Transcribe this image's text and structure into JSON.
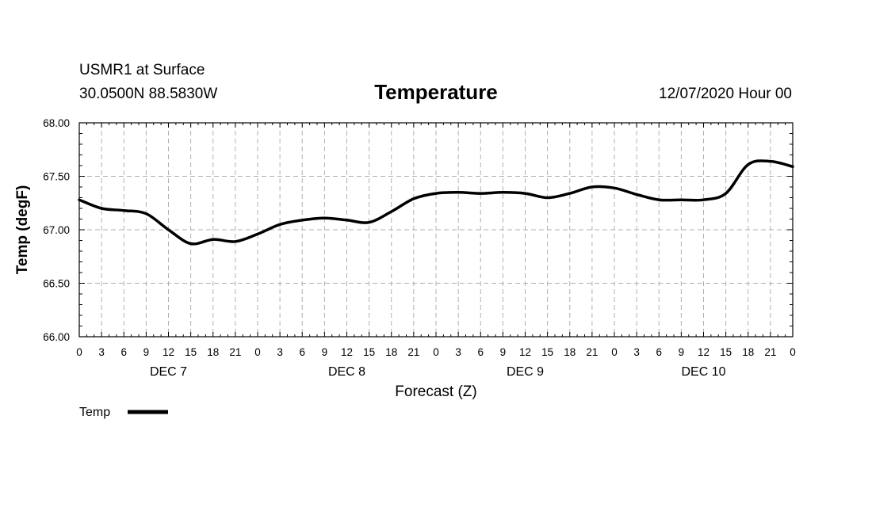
{
  "chart_data": {
    "type": "line",
    "station_label": "USMR1 at Surface",
    "location_label": "30.0500N 88.5830W",
    "title": "Temperature",
    "run_label": "12/07/2020 Hour 00",
    "xlabel": "Forecast (Z)",
    "ylabel": "Temp (degF)",
    "ylim": [
      66.0,
      68.0
    ],
    "xlim": [
      0,
      96
    ],
    "yticks": [
      "66.00",
      "66.50",
      "67.00",
      "67.50",
      "68.00"
    ],
    "ytick_values": [
      66.0,
      66.5,
      67.0,
      67.5,
      68.0
    ],
    "xtick_labels": [
      "0",
      "3",
      "6",
      "9",
      "12",
      "15",
      "18",
      "21",
      "0",
      "3",
      "6",
      "9",
      "12",
      "15",
      "18",
      "21",
      "0",
      "3",
      "6",
      "9",
      "12",
      "15",
      "18",
      "21",
      "0",
      "3",
      "6",
      "9",
      "12",
      "15",
      "18",
      "21",
      "0"
    ],
    "day_labels": [
      {
        "label": "DEC 7",
        "hour": 12
      },
      {
        "label": "DEC 8",
        "hour": 36
      },
      {
        "label": "DEC 9",
        "hour": 60
      },
      {
        "label": "DEC 10",
        "hour": 84
      }
    ],
    "grid": true,
    "legend": {
      "position": "bottom-left",
      "entries": [
        "Temp"
      ]
    },
    "series": [
      {
        "name": "Temp",
        "x": [
          0,
          3,
          6,
          9,
          12,
          15,
          18,
          21,
          24,
          27,
          30,
          33,
          36,
          39,
          42,
          45,
          48,
          51,
          54,
          57,
          60,
          63,
          66,
          69,
          72,
          75,
          78,
          81,
          84,
          87,
          90,
          93,
          96
        ],
        "values": [
          67.28,
          67.2,
          67.18,
          67.15,
          67.0,
          66.87,
          66.91,
          66.89,
          66.96,
          67.05,
          67.09,
          67.11,
          67.09,
          67.07,
          67.17,
          67.29,
          67.34,
          67.35,
          67.34,
          67.35,
          67.34,
          67.3,
          67.34,
          67.4,
          67.39,
          67.33,
          67.28,
          67.28,
          67.28,
          67.34,
          67.61,
          67.64,
          67.59
        ]
      }
    ]
  }
}
